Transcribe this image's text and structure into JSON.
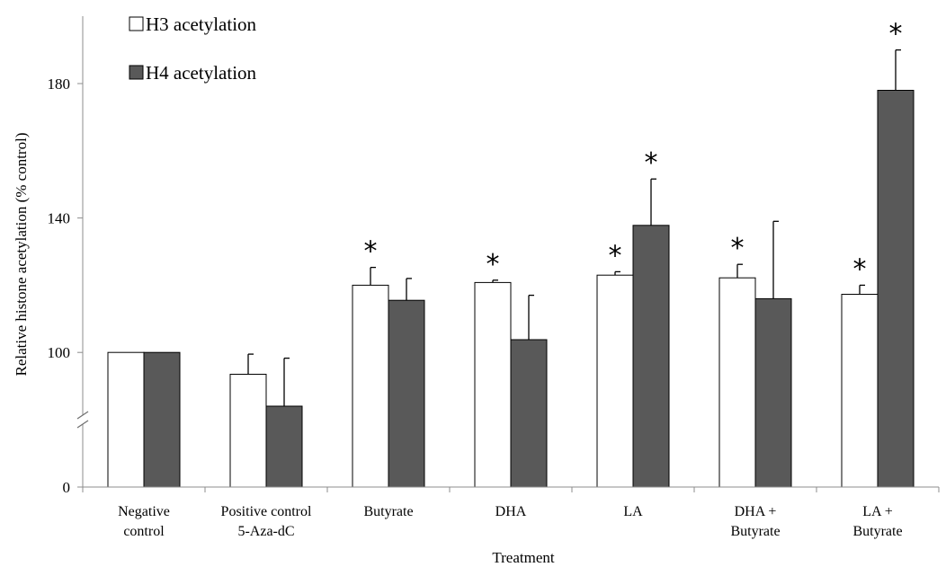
{
  "chart_data": {
    "type": "bar",
    "title": "",
    "xlabel": "Treatment",
    "ylabel": "Relative histone acetylation (% control)",
    "y_axis": {
      "broken": true,
      "break_between": [
        0,
        80
      ],
      "ticks": [
        {
          "value": 0,
          "label": "0"
        },
        {
          "value": 100,
          "label": "100"
        },
        {
          "value": 140,
          "label": "140"
        },
        {
          "value": 180,
          "label": "180"
        }
      ],
      "ylim": [
        80,
        200
      ]
    },
    "legend": {
      "position": "top-left"
    },
    "categories": [
      {
        "lines": [
          "Negative",
          "control"
        ]
      },
      {
        "lines": [
          "Positive control",
          "5-Aza-dC"
        ]
      },
      {
        "lines": [
          "Butyrate"
        ]
      },
      {
        "lines": [
          "DHA"
        ]
      },
      {
        "lines": [
          "LA"
        ]
      },
      {
        "lines": [
          "DHA +",
          "Butyrate"
        ]
      },
      {
        "lines": [
          "LA +",
          "Butyrate"
        ]
      }
    ],
    "series": [
      {
        "name": "H3 acetylation",
        "color": "#ffffff",
        "values": [
          100,
          93.5,
          120,
          120.8,
          123,
          122.2,
          117.3
        ],
        "errors": [
          0,
          6,
          5.3,
          0.7,
          1,
          4,
          2.7
        ],
        "significant": [
          false,
          false,
          true,
          true,
          true,
          true,
          true
        ]
      },
      {
        "name": "H4 acetylation",
        "color": "#595959",
        "values": [
          100,
          84,
          115.5,
          103.8,
          137.8,
          116,
          178
        ],
        "errors": [
          0,
          14.3,
          6.5,
          13.2,
          13.8,
          23,
          12
        ],
        "significant": [
          false,
          false,
          false,
          false,
          true,
          false,
          true
        ]
      }
    ],
    "significance_symbol": "*",
    "grid": false
  }
}
